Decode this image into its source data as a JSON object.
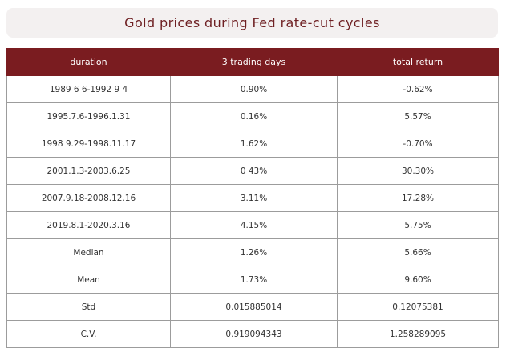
{
  "title": "Gold prices during Fed rate-cut cycles",
  "colors": {
    "header_bg": "#7a1c20",
    "title_text": "#6e1f22",
    "title_bg": "#f3f0f0"
  },
  "table": {
    "headers": [
      "duration",
      "3 trading days",
      "total return"
    ],
    "rows": [
      [
        "1989 6 6-1992 9 4",
        "0.90%",
        "-0.62%"
      ],
      [
        "1995.7.6-1996.1.31",
        "0.16%",
        "5.57%"
      ],
      [
        "1998 9.29-1998.11.17",
        "1.62%",
        "-0.70%"
      ],
      [
        "2001.1.3-2003.6.25",
        "0 43%",
        "30.30%"
      ],
      [
        "2007.9.18-2008.12.16",
        "3.11%",
        "17.28%"
      ],
      [
        "2019.8.1-2020.3.16",
        "4.15%",
        "5.75%"
      ],
      [
        "Median",
        "1.26%",
        "5.66%"
      ],
      [
        "Mean",
        "1.73%",
        "9.60%"
      ],
      [
        "Std",
        "0.015885014",
        "0.12075381"
      ],
      [
        "C.V.",
        "0.919094343",
        "1.258289095"
      ]
    ]
  }
}
